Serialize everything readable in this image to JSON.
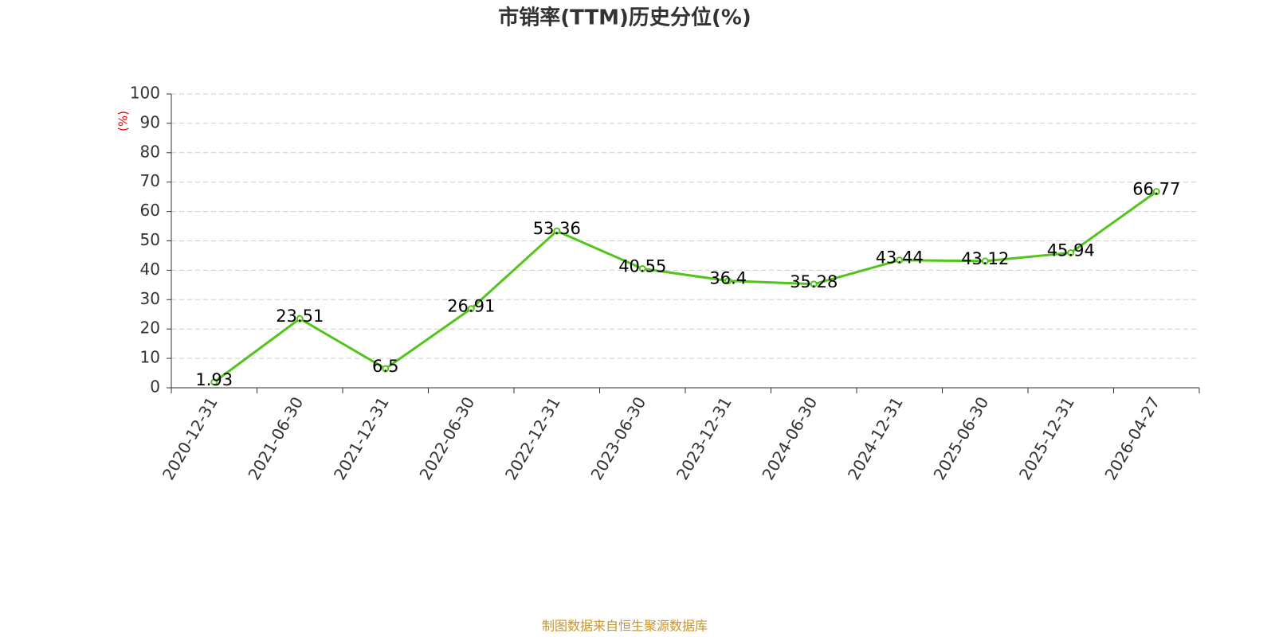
{
  "chart_data": {
    "type": "line",
    "title": "市销率(TTM)历史分位(%)",
    "y_label": "(%)",
    "categories": [
      "2020-12-31",
      "2021-06-30",
      "2021-12-31",
      "2022-06-30",
      "2022-12-31",
      "2023-06-30",
      "2023-12-31",
      "2024-06-30",
      "2024-12-31",
      "2025-06-30",
      "2025-12-31",
      "2026-04-27"
    ],
    "values": [
      1.93,
      23.51,
      6.5,
      26.91,
      53.36,
      40.55,
      36.4,
      35.28,
      43.44,
      43.12,
      45.94,
      66.77
    ],
    "color": "#52c41a",
    "ylim": [
      0,
      100
    ],
    "yticks": [
      0,
      10,
      20,
      30,
      40,
      50,
      60,
      70,
      80,
      90,
      100
    ],
    "grid": true,
    "source": "制图数据来自恒生聚源数据库"
  }
}
